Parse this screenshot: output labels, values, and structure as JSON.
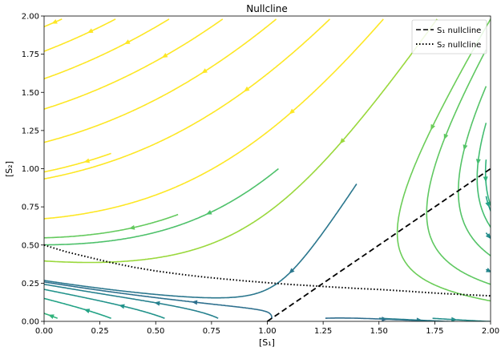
{
  "chart_data": {
    "type": "streamplot",
    "title": "Nullcline",
    "xlabel": "[S₁]",
    "ylabel": "[S₂]",
    "xlim": [
      0,
      2
    ],
    "ylim": [
      0,
      2
    ],
    "xticks": [
      "0.00",
      "0.25",
      "0.50",
      "0.75",
      "1.00",
      "1.25",
      "1.50",
      "1.75",
      "2.00"
    ],
    "yticks": [
      "0.00",
      "0.25",
      "0.50",
      "0.75",
      "1.00",
      "1.25",
      "1.50",
      "1.75",
      "2.00"
    ],
    "grid": false,
    "colormap": "viridis",
    "legend": {
      "placement": "top-right",
      "entries": [
        {
          "label": "S₁ nullcline",
          "style": "dashed",
          "color": "#000000"
        },
        {
          "label": "S₂ nullcline",
          "style": "dotted",
          "color": "#000000"
        }
      ]
    },
    "series": [
      {
        "name": "S₁ nullcline",
        "style": "dashed",
        "x": [
          1.0,
          1.25,
          1.5,
          1.75,
          2.0
        ],
        "y": [
          0.0,
          0.25,
          0.5,
          0.75,
          1.0
        ]
      },
      {
        "name": "S₂ nullcline",
        "style": "dotted",
        "x": [
          0.0,
          0.1,
          0.2,
          0.3,
          0.4,
          0.5,
          0.6,
          0.7,
          0.8,
          0.9,
          1.0,
          1.1,
          1.2,
          1.3,
          1.4,
          1.5,
          1.6,
          1.7,
          1.8,
          1.9,
          2.0
        ],
        "y": [
          0.5,
          0.455,
          0.42,
          0.385,
          0.355,
          0.33,
          0.31,
          0.293,
          0.278,
          0.265,
          0.253,
          0.242,
          0.233,
          0.224,
          0.216,
          0.209,
          0.2,
          0.19,
          0.181,
          0.174,
          0.167
        ]
      }
    ],
    "fixed_point": {
      "x": 1.22,
      "y": 0.22
    }
  }
}
